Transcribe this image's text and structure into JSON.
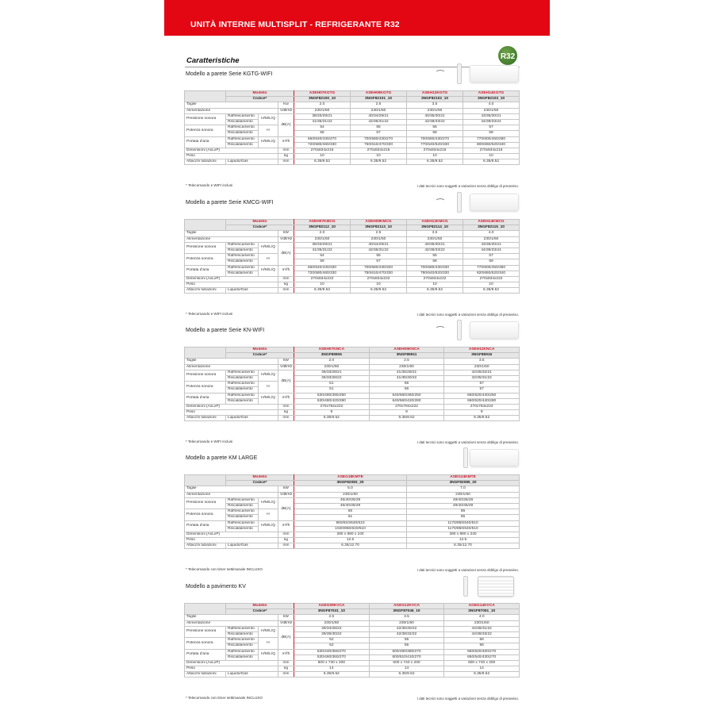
{
  "header": {
    "title": "UNITÀ INTERNE MULTISPLIT - REFRIGERANTE R32",
    "section": "Caratteristiche",
    "badge": "R32"
  },
  "labels": {
    "modello": "Modello",
    "codice": "Codice*",
    "taglie": "Taglie",
    "alimentazione": "Alimentazione",
    "pressione": "Pressione sonora",
    "potenza": "Potenza sonora",
    "portata": "Portata d'aria",
    "raff": "Raffrescamento",
    "risc": "Riscaldamento",
    "hmlq": "H/M/L/Q",
    "h": "H",
    "dba": "dB(A)",
    "v": "V/Ø/Hz",
    "m3h": "m³/h",
    "dimensioni": "Dimensioni (AxLxP)",
    "mm": "mm",
    "peso": "Peso",
    "kg": "kg",
    "attacchi": "Attacchi tubazioni",
    "liqgas": "Liquido/Gas"
  },
  "disclaimer": "I dati tecnici sono soggetti a variazioni senza obbligo di preavviso.",
  "sections": [
    {
      "title": "Modello a parete Serie KGTG-WIFI",
      "power_unit": "Kw",
      "icons": [
        "wifi-icon",
        "remote-icon",
        "wall-unit-image"
      ],
      "footnote": "* Telecomando e WIFI inclusi",
      "models": [
        {
          "name": "ASEH07KGTG",
          "code": "3NGF82100_10",
          "values": [
            "2.0",
            "230/1/50",
            "38/33/29/21",
            "41/35/31/22",
            "54",
            "56",
            "650/540/430/270",
            "720/580/460/330",
            "270x834x215",
            "10",
            "6.35/9.52"
          ]
        },
        {
          "name": "ASEH09KGTG",
          "code": "3NGF82101_10",
          "values": [
            "2.5",
            "230/1/50",
            "40/34/29/21",
            "42/36/31/22",
            "55",
            "57",
            "700/560/430/270",
            "750/610/470/330",
            "270x834x215",
            "10",
            "6.35/9.52"
          ]
        },
        {
          "name": "ASEH12KGTG",
          "code": "3NGF82102_10",
          "values": [
            "3.5",
            "230/1/50",
            "40/35/30/21",
            "42/38/33/22",
            "56",
            "58",
            "700/560/430/270",
            "770/640/520/330",
            "270x834x215",
            "10",
            "6.35/9.52"
          ]
        },
        {
          "name": "ASEH14KGTG",
          "code": "3NGF82103_10",
          "values": [
            "4.0",
            "230/1/50",
            "43/36/30/21",
            "44/39/33/24",
            "57",
            "59",
            "770/600/450/280",
            "800/660/520/340",
            "270x834x215",
            "10",
            "6.35/9.52"
          ]
        }
      ]
    },
    {
      "title": "Modello a parete Serie KMCG-WIFI",
      "power_unit": "kW",
      "icons": [
        "wifi-icon",
        "remote-icon",
        "wall-unit-image"
      ],
      "footnote": "* Telecomando e WIFI inclusi",
      "models": [
        {
          "name": "ASEH07KMCG",
          "code": "3NGF82112_10",
          "values": [
            "2.0",
            "230/1/50",
            "38/33/29/21",
            "41/35/31/22",
            "54",
            "56",
            "650/540/430/330",
            "720/580/460/330",
            "270x834x222",
            "10",
            "6.35/9.52"
          ]
        },
        {
          "name": "ASEH09KMCG",
          "code": "3NGF82113_10",
          "values": [
            "2.5",
            "230/1/50",
            "40/34/29/21",
            "42/36/31/22",
            "55",
            "57",
            "700/560/430/320",
            "750/610/470/330",
            "270x834x222",
            "10",
            "6.35/9.52"
          ]
        },
        {
          "name": "ASEH12KMCG",
          "code": "3NGF82114_10",
          "values": [
            "3.5",
            "230/1/50",
            "40/35/30/21",
            "42/38/33/22",
            "55",
            "58",
            "700/580/430/330",
            "780/640/520/330",
            "270x834x222",
            "10",
            "6.35/9.52"
          ]
        },
        {
          "name": "ASEH14KMCG",
          "code": "3NGF82115_10",
          "values": [
            "4.0",
            "230/1/50",
            "43/36/30/21",
            "44/39/33/24",
            "57",
            "59",
            "770/600/450/350",
            "820/660/520/340",
            "270x834x222",
            "10",
            "6.35/9.52"
          ]
        }
      ]
    },
    {
      "title": "Modello a parete Serie KN-WIFI",
      "power_unit": "kW",
      "icons": [
        "wifi-icon",
        "remote-icon",
        "wall-unit-image"
      ],
      "footnote": "* Telecomando e WIFI inclusi",
      "models": [
        {
          "name": "ASEH07KNCA",
          "code": "3NGF89906",
          "values": [
            "2.0",
            "230/1/50",
            "36/33/28/21",
            "36/33/28/22",
            "51",
            "51",
            "530/480/390/250",
            "530/480/420/280",
            "270x784x222",
            "9",
            "6.35/9.52"
          ]
        },
        {
          "name": "ASEH09KNCA",
          "code": "3NGF89911",
          "values": [
            "2.5",
            "230/1/50",
            "41/35/28/21",
            "41/36/30/22",
            "56",
            "56",
            "640/560/360/250",
            "640/560/420/280",
            "270x784x222",
            "9",
            "6.35/9.52"
          ]
        },
        {
          "name": "ASEH12KNCA",
          "code": "3NGF89916",
          "values": [
            "3.5",
            "230/1/50",
            "42/36/32/21",
            "42/35/31/22",
            "57",
            "57",
            "660/520/440/250",
            "660/520/440/280",
            "270x784x222",
            "9",
            "6.35/9.52"
          ]
        }
      ]
    },
    {
      "title": "Modello a parete KM LARGE",
      "power_unit": "kW",
      "icons": [
        "remote-icon",
        "wall-unit-image"
      ],
      "footnote": "* Telecomando con timer settimanale INCLUSO",
      "models": [
        {
          "name": "ASEG18KMTE",
          "code": "3NGF82083_20",
          "values": [
            "5.0",
            "230/1/50",
            "45/40/35/29",
            "46/40/35/29",
            "60",
            "61",
            "960/810/640/510",
            "1020/850/640/510",
            "280 x 980 x 240",
            "12.5",
            "6.35/12.70"
          ]
        },
        {
          "name": "ASEG24KMTE",
          "code": "3NGF82085_20",
          "values": [
            "7.0",
            "230/1/50",
            "49/40/35/29",
            "49/40/35/29",
            "65",
            "65",
            "1170/850/640/510",
            "1170/850/640/510",
            "280 x 980 x 240",
            "12.5",
            "6.35/12.70"
          ]
        }
      ]
    },
    {
      "title": "Modello a pavimento KV",
      "power_unit": "kW",
      "icons": [
        "remote-icon",
        "floor-unit-image"
      ],
      "footnote": "* Telecomando con timer settimanale INCLUSO",
      "models": [
        {
          "name": "AGEG09KVCA",
          "code": "3NGF87041_10",
          "values": [
            "2.5",
            "230/1/50",
            "39/34/28/22",
            "39/35/30/22",
            "52",
            "52",
            "530/440/360/270",
            "530/460/360/270",
            "600 x 740 x 200",
            "14",
            "6.35/9.52"
          ]
        },
        {
          "name": "AGEG12KVCA",
          "code": "3NGF87046_10",
          "values": [
            "3.5",
            "230/1/50",
            "42/36/30/22",
            "42/38/32/22",
            "55",
            "55",
            "600/490/380/270",
            "600/510/410/270",
            "600 x 740 x 200",
            "14",
            "6.35/9.52"
          ]
        },
        {
          "name": "AGEG14KVCA",
          "code": "3NGF87051_10",
          "values": [
            "4.0",
            "230/1/50",
            "44/38/31/22",
            "44/38/33/22",
            "56",
            "56",
            "650/520/400/270",
            "650/540/430/270",
            "600 x 740 x 200",
            "14",
            "6.35/9.52"
          ]
        }
      ]
    }
  ]
}
